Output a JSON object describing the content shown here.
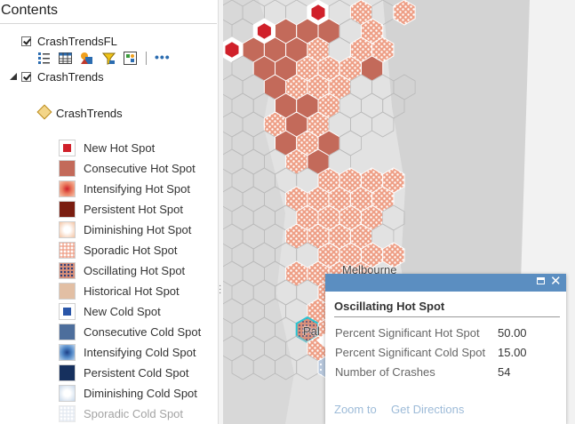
{
  "contents": {
    "title": "Contents",
    "layers": [
      {
        "name": "CrashTrendsFL",
        "checked": true
      },
      {
        "name": "CrashTrends",
        "checked": true
      }
    ],
    "sublayer": "CrashTrends",
    "tools": [
      "attribute-table-icon",
      "table-icon",
      "symbology-icon",
      "filter-icon",
      "change-style-icon"
    ],
    "more_label": "•••"
  },
  "legend": [
    {
      "label": "New Hot Spot",
      "color": "#d0202a"
    },
    {
      "label": "Consecutive Hot Spot",
      "color": "#c36a5a"
    },
    {
      "label": "Intensifying Hot Spot",
      "color": "#e06a50"
    },
    {
      "label": "Persistent Hot Spot",
      "color": "#7a1d10"
    },
    {
      "label": "Diminishing Hot Spot",
      "color": "#f7d6be"
    },
    {
      "label": "Sporadic Hot Spot",
      "color": "#f0a994"
    },
    {
      "label": "Oscillating Hot Spot",
      "color": "#d9907a"
    },
    {
      "label": "Historical Hot Spot",
      "color": "#e2bfa4"
    },
    {
      "label": "New Cold Spot",
      "color": "#2a56a8"
    },
    {
      "label": "Consecutive Cold Spot",
      "color": "#4d6e9c"
    },
    {
      "label": "Intensifying Cold Spot",
      "color": "#4f86c6"
    },
    {
      "label": "Persistent Cold Spot",
      "color": "#16305e"
    },
    {
      "label": "Diminishing Cold Spot",
      "color": "#d5e2ef"
    },
    {
      "label": "Sporadic Cold Spot",
      "color": "#c8d3e3"
    }
  ],
  "map": {
    "place_labels": [
      "Melbourne",
      "Pal"
    ]
  },
  "popup": {
    "title": "Oscillating Hot Spot",
    "fields": [
      {
        "name": "Percent Significant Hot Spot",
        "value": "50.00"
      },
      {
        "name": "Percent Significant Cold Spot",
        "value": "15.00"
      },
      {
        "name": "Number of Crashes",
        "value": "54"
      }
    ],
    "zoom_label": "Zoom to",
    "directions_label": "Get Directions",
    "header_color": "#5b8ec1"
  }
}
